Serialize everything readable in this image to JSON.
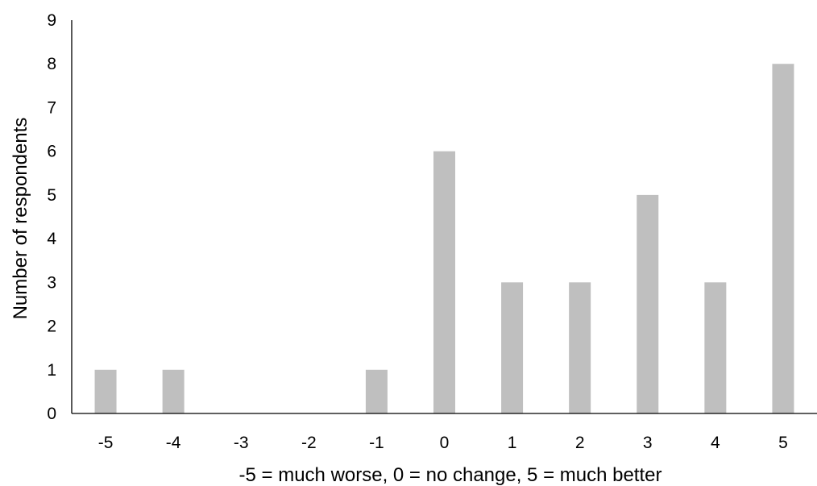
{
  "chart_data": {
    "type": "bar",
    "title": "",
    "xlabel": "-5 = much worse, 0 = no change, 5 = much better",
    "ylabel": "Number of respondents",
    "categories": [
      "-5",
      "-4",
      "-3",
      "-2",
      "-1",
      "0",
      "1",
      "2",
      "3",
      "4",
      "5"
    ],
    "values": [
      1,
      1,
      0,
      0,
      1,
      6,
      3,
      3,
      5,
      3,
      8
    ],
    "ylim": [
      0,
      9
    ],
    "yticks": [
      "0",
      "1",
      "2",
      "3",
      "4",
      "5",
      "6",
      "7",
      "8",
      "9"
    ],
    "grid": false,
    "legend": "none",
    "bar_color": "#bfbfbf",
    "axis_color": "#000000"
  }
}
